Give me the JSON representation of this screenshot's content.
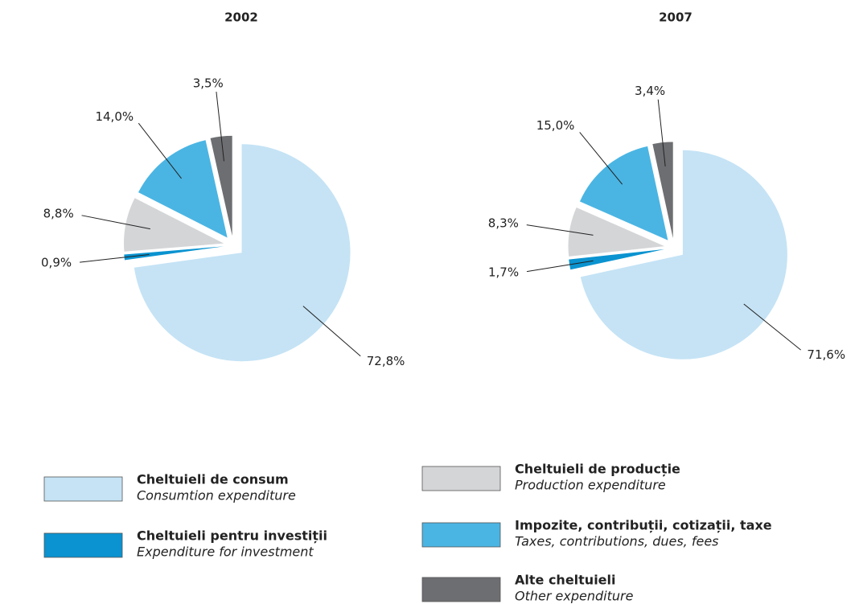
{
  "chart_data": [
    {
      "type": "pie",
      "title": "2002",
      "values": [
        72.8,
        0.9,
        8.8,
        14.0,
        3.5
      ],
      "value_labels": [
        "72,8%",
        "0,9%",
        "8,8%",
        "14,0%",
        "3,5%"
      ]
    },
    {
      "type": "pie",
      "title": "2007",
      "values": [
        71.6,
        1.7,
        8.3,
        15.0,
        3.4
      ],
      "value_labels": [
        "71,6%",
        "1,7%",
        "8,3%",
        "15,0%",
        "3,4%"
      ]
    }
  ],
  "legend": [
    {
      "title": "Cheltuieli de consum",
      "subtitle": "Consumtion expenditure",
      "color": "#c5e3f5"
    },
    {
      "title": "Cheltuieli pentru investiții",
      "subtitle": "Expenditure for investment",
      "color": "#0a93d0"
    },
    {
      "title": "Cheltuieli de producție",
      "subtitle": "Production expenditure",
      "color": "#d4d5d7"
    },
    {
      "title": "Impozite, contribuții, cotizații, taxe",
      "subtitle": "Taxes, contributions, dues, fees",
      "color": "#4ab5e3"
    },
    {
      "title": "Alte cheltuieli",
      "subtitle": "Other expenditure",
      "color": "#6d6e71"
    }
  ]
}
